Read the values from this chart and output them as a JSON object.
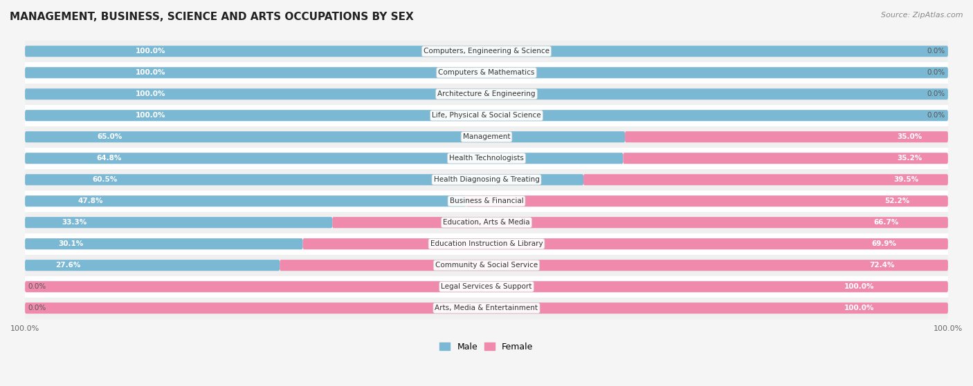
{
  "title": "MANAGEMENT, BUSINESS, SCIENCE AND ARTS OCCUPATIONS BY SEX",
  "source": "Source: ZipAtlas.com",
  "categories": [
    "Computers, Engineering & Science",
    "Computers & Mathematics",
    "Architecture & Engineering",
    "Life, Physical & Social Science",
    "Management",
    "Health Technologists",
    "Health Diagnosing & Treating",
    "Business & Financial",
    "Education, Arts & Media",
    "Education Instruction & Library",
    "Community & Social Service",
    "Legal Services & Support",
    "Arts, Media & Entertainment"
  ],
  "male": [
    100.0,
    100.0,
    100.0,
    100.0,
    65.0,
    64.8,
    60.5,
    47.8,
    33.3,
    30.1,
    27.6,
    0.0,
    0.0
  ],
  "female": [
    0.0,
    0.0,
    0.0,
    0.0,
    35.0,
    35.2,
    39.5,
    52.2,
    66.7,
    69.9,
    72.4,
    100.0,
    100.0
  ],
  "male_color": "#7bb8d4",
  "female_color": "#f08aad",
  "bg_color": "#f5f5f5",
  "row_bg_even": "#f0f0f0",
  "row_bg_odd": "#ffffff",
  "bar_height": 0.52,
  "title_fontsize": 11,
  "label_fontsize": 7.5,
  "tick_fontsize": 8,
  "legend_fontsize": 9,
  "source_fontsize": 8
}
